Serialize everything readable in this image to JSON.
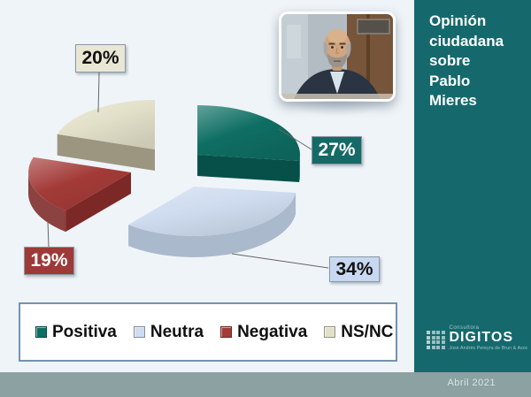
{
  "sidebar": {
    "title": "Opinión ciudadana sobre Pablo Mieres",
    "title_lines": [
      "Opinión",
      "ciudadana",
      "sobre",
      "Pablo",
      "Mieres"
    ]
  },
  "footer": {
    "date": "Abril 2021"
  },
  "logo": {
    "top_label": "Consultora",
    "name": "DIGITOS",
    "tagline": "José Andrés Pereyra de Brun & Asoc"
  },
  "photo": {
    "subject": "Pablo Mieres"
  },
  "colors": {
    "sidebar_bg": "#15696D",
    "footer_bar_bg": "#8CA2A2",
    "canvas_bg": "#EFF4F8",
    "legend_border": "#7592B2"
  },
  "chart_data": {
    "type": "pie",
    "style": "3d-exploded",
    "title": "Opinión ciudadana sobre Pablo Mieres",
    "unit": "%",
    "legend_position": "bottom",
    "slices": [
      {
        "label": "Positiva",
        "value": 27,
        "color": "#0E6E63",
        "side_color": "#07504A",
        "label_bg": "#156A66",
        "label_text": "#FFFFFF"
      },
      {
        "label": "Neutra",
        "value": 34,
        "color": "#CEDCEF",
        "side_color": "#9FAFC5",
        "label_bg": "#C8D8F0",
        "label_text": "#111111"
      },
      {
        "label": "Negativa",
        "value": 19,
        "color": "#A33B38",
        "side_color": "#7C2826",
        "label_bg": "#9D3937",
        "label_text": "#FFFFFF"
      },
      {
        "label": "NS/NC",
        "value": 20,
        "color": "#E3E0C9",
        "side_color": "#9C9680",
        "label_bg": "#E9E6D4",
        "label_text": "#111111"
      }
    ]
  }
}
